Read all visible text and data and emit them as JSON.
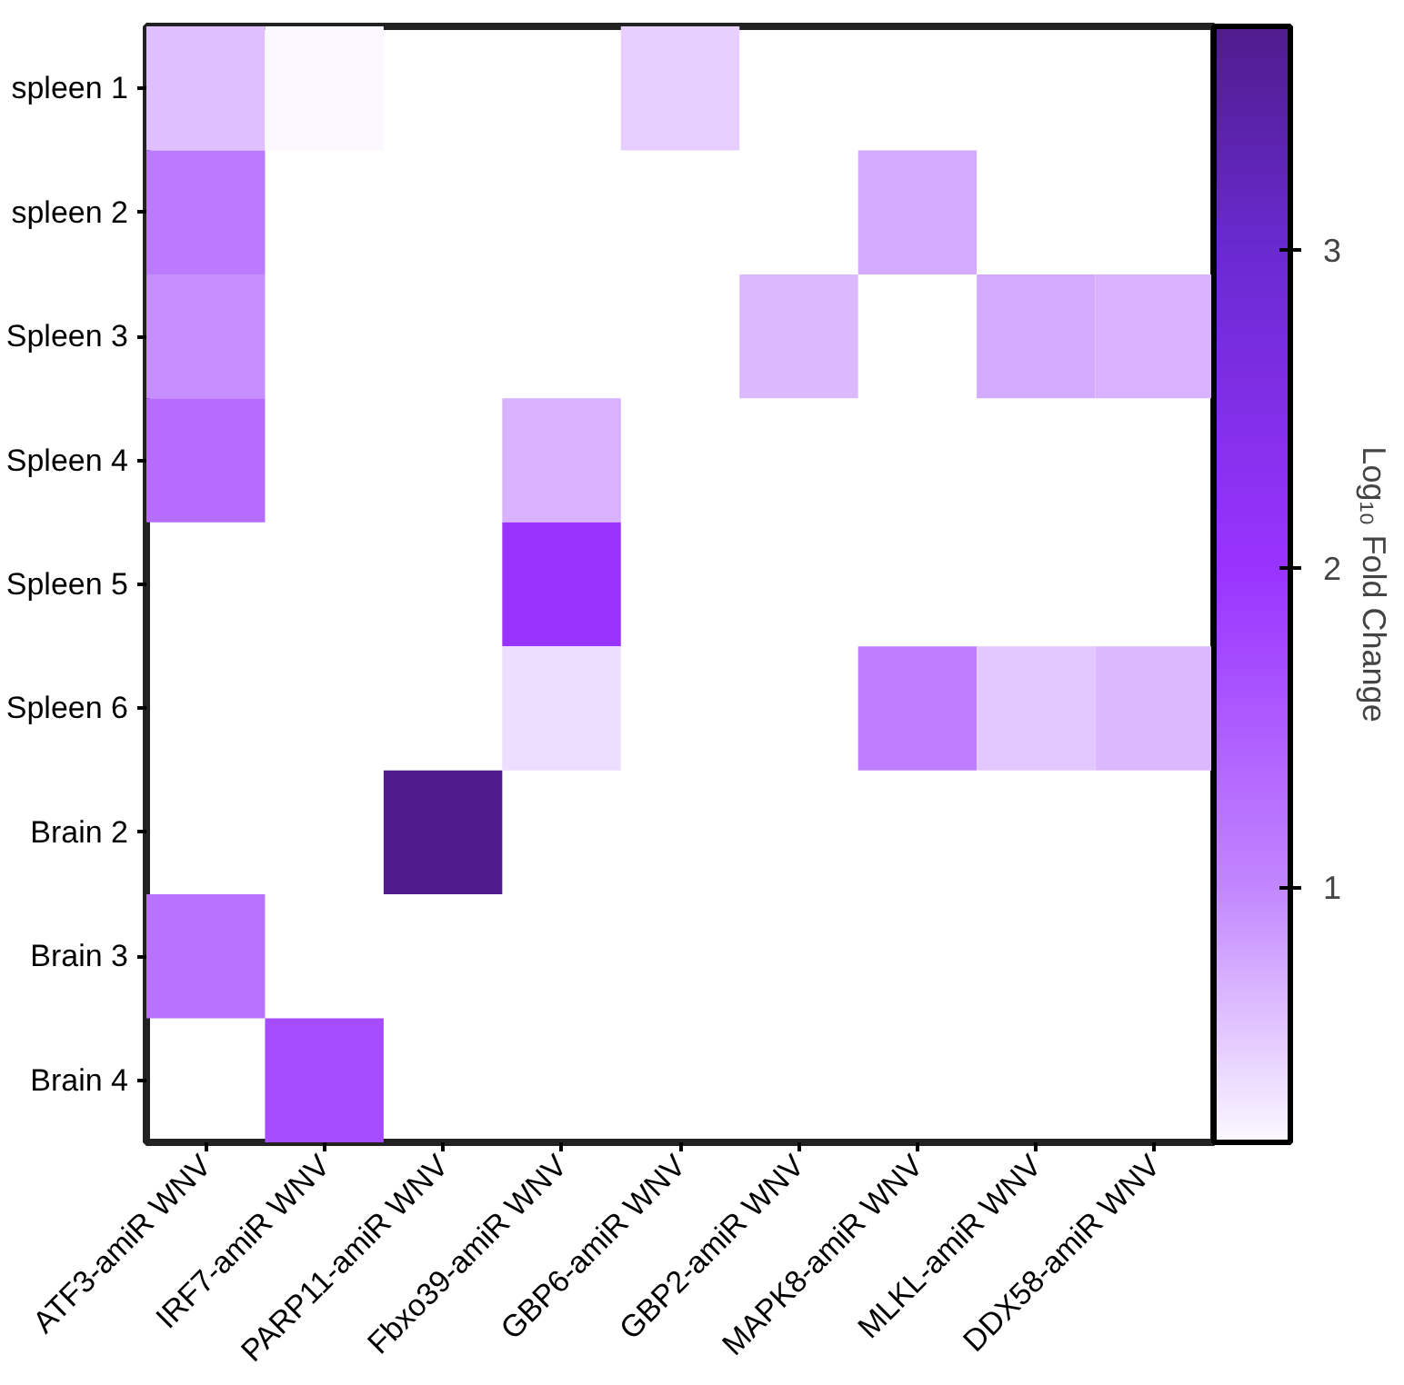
{
  "chart_data": {
    "type": "heatmap",
    "categories": [
      "ATF3-amiR WNV",
      "IRF7-amiR WNV",
      "PARP11-amiR WNV",
      "Fbxo39-amiR WNV",
      "GBP6-amiR WNV",
      "GBP2-amiR WNV",
      "MAPK8-amiR WNV",
      "MLKL-amiR WNV",
      "DDX58-amiR WNV"
    ],
    "y_categories": [
      "spleen 1",
      "spleen 2",
      "Spleen 3",
      "Spleen 4",
      "Spleen 5",
      "Spleen 6",
      "Brain 2",
      "Brain 3",
      "Brain 4"
    ],
    "cells": [
      [
        0.6,
        0.2,
        null,
        null,
        0.5,
        null,
        null,
        null,
        null
      ],
      [
        1.15,
        null,
        null,
        null,
        null,
        null,
        0.75,
        null,
        null
      ],
      [
        0.95,
        null,
        null,
        null,
        null,
        0.65,
        null,
        0.75,
        0.7
      ],
      [
        1.3,
        null,
        null,
        0.7,
        null,
        null,
        null,
        null,
        null
      ],
      [
        null,
        null,
        null,
        2.0,
        null,
        null,
        null,
        null,
        null
      ],
      [
        null,
        null,
        null,
        0.4,
        null,
        null,
        1.1,
        0.55,
        0.65
      ],
      [
        null,
        null,
        3.7,
        null,
        null,
        null,
        null,
        null,
        null
      ],
      [
        1.25,
        null,
        null,
        null,
        null,
        null,
        null,
        null,
        null
      ],
      [
        null,
        1.7,
        null,
        null,
        null,
        null,
        null,
        null,
        null
      ]
    ],
    "clim": [
      0.2,
      3.7
    ],
    "cticks": [
      1,
      2,
      3
    ],
    "clabel": "Log₁₀ Fold Change"
  }
}
